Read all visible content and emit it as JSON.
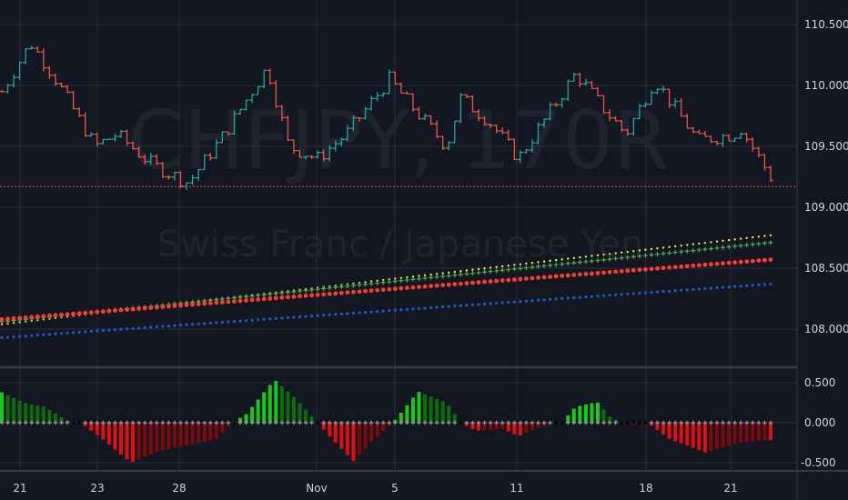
{
  "watermark": {
    "symbol": "CHFJPY, 170R",
    "description": "Swiss Franc / Japanese Yen"
  },
  "colors": {
    "background": "#131722",
    "up_bar": "#26a69a",
    "down_bar": "#ef5350",
    "last_price_line": "#ef5350",
    "ma_yellow": "#f5e94a",
    "ma_green": "#4caf50",
    "ma_red": "#ff3b30",
    "ma_blue": "#1e5bc6",
    "hist_pos_strong": "#19c819",
    "hist_pos_weak": "#0b6e0b",
    "hist_neg_strong": "#e01010",
    "hist_neg_weak": "#7d0a0a"
  },
  "chart_data": [
    {
      "type": "bar",
      "pane": "price",
      "price_axis_ticks": [
        "110.500",
        "110.000",
        "109.500",
        "109.000",
        "108.500",
        "108.000"
      ],
      "ylim": [
        107.7,
        110.7
      ],
      "last_price": 109.17,
      "price_path": [
        [
          0,
          109.95
        ],
        [
          4,
          110.35
        ],
        [
          7,
          110.1
        ],
        [
          13,
          109.5
        ],
        [
          16,
          109.6
        ],
        [
          21,
          109.35
        ],
        [
          26,
          109.2
        ],
        [
          31,
          109.6
        ],
        [
          37,
          110.15
        ],
        [
          40,
          109.5
        ],
        [
          44,
          109.4
        ],
        [
          48,
          109.6
        ],
        [
          54,
          110.05
        ],
        [
          59,
          109.7
        ],
        [
          62,
          109.5
        ],
        [
          64,
          109.9
        ],
        [
          68,
          109.7
        ],
        [
          72,
          109.4
        ],
        [
          76,
          109.75
        ],
        [
          80,
          110.1
        ],
        [
          84,
          109.8
        ],
        [
          87,
          109.6
        ],
        [
          91,
          110.05
        ],
        [
          97,
          109.55
        ],
        [
          102,
          109.6
        ],
        [
          103,
          109.65
        ],
        [
          108,
          109.17
        ]
      ],
      "moving_averages": [
        {
          "color": "ma_yellow",
          "start": 108.04,
          "end": 108.77
        },
        {
          "color": "ma_green",
          "start": 108.06,
          "end": 108.71
        },
        {
          "color": "ma_red",
          "start": 108.08,
          "end": 108.57
        },
        {
          "color": "ma_blue",
          "start": 107.93,
          "end": 108.37
        }
      ]
    },
    {
      "type": "bar",
      "pane": "oscillator",
      "axis_ticks": [
        "0.500",
        "0.000",
        "-0.500"
      ],
      "ylim": [
        -0.58,
        0.6
      ],
      "histogram_path": [
        [
          0,
          0.38
        ],
        [
          3,
          0.25
        ],
        [
          6,
          0.2
        ],
        [
          9,
          0.03
        ],
        [
          11,
          0.0
        ],
        [
          14,
          -0.2
        ],
        [
          18,
          -0.5
        ],
        [
          22,
          -0.35
        ],
        [
          26,
          -0.28
        ],
        [
          30,
          -0.2
        ],
        [
          32,
          0
        ],
        [
          34,
          0.1
        ],
        [
          38,
          0.54
        ],
        [
          41,
          0.3
        ],
        [
          44,
          0.0
        ],
        [
          46,
          -0.2
        ],
        [
          49,
          -0.48
        ],
        [
          52,
          -0.2
        ],
        [
          55,
          0.05
        ],
        [
          58,
          0.39
        ],
        [
          62,
          0.25
        ],
        [
          64,
          0.0
        ],
        [
          66,
          -0.1
        ],
        [
          70,
          -0.08
        ],
        [
          72,
          -0.17
        ],
        [
          75,
          -0.05
        ],
        [
          78,
          0
        ],
        [
          80,
          0.2
        ],
        [
          83,
          0.26
        ],
        [
          85,
          0.05
        ],
        [
          88,
          -0.02
        ],
        [
          90,
          0
        ],
        [
          93,
          -0.2
        ],
        [
          98,
          -0.37
        ],
        [
          103,
          -0.25
        ],
        [
          106,
          -0.22
        ]
      ]
    }
  ],
  "x_axis_ticks": [
    "21",
    "23",
    "28",
    "Nov",
    "5",
    "11",
    "18",
    "21"
  ]
}
